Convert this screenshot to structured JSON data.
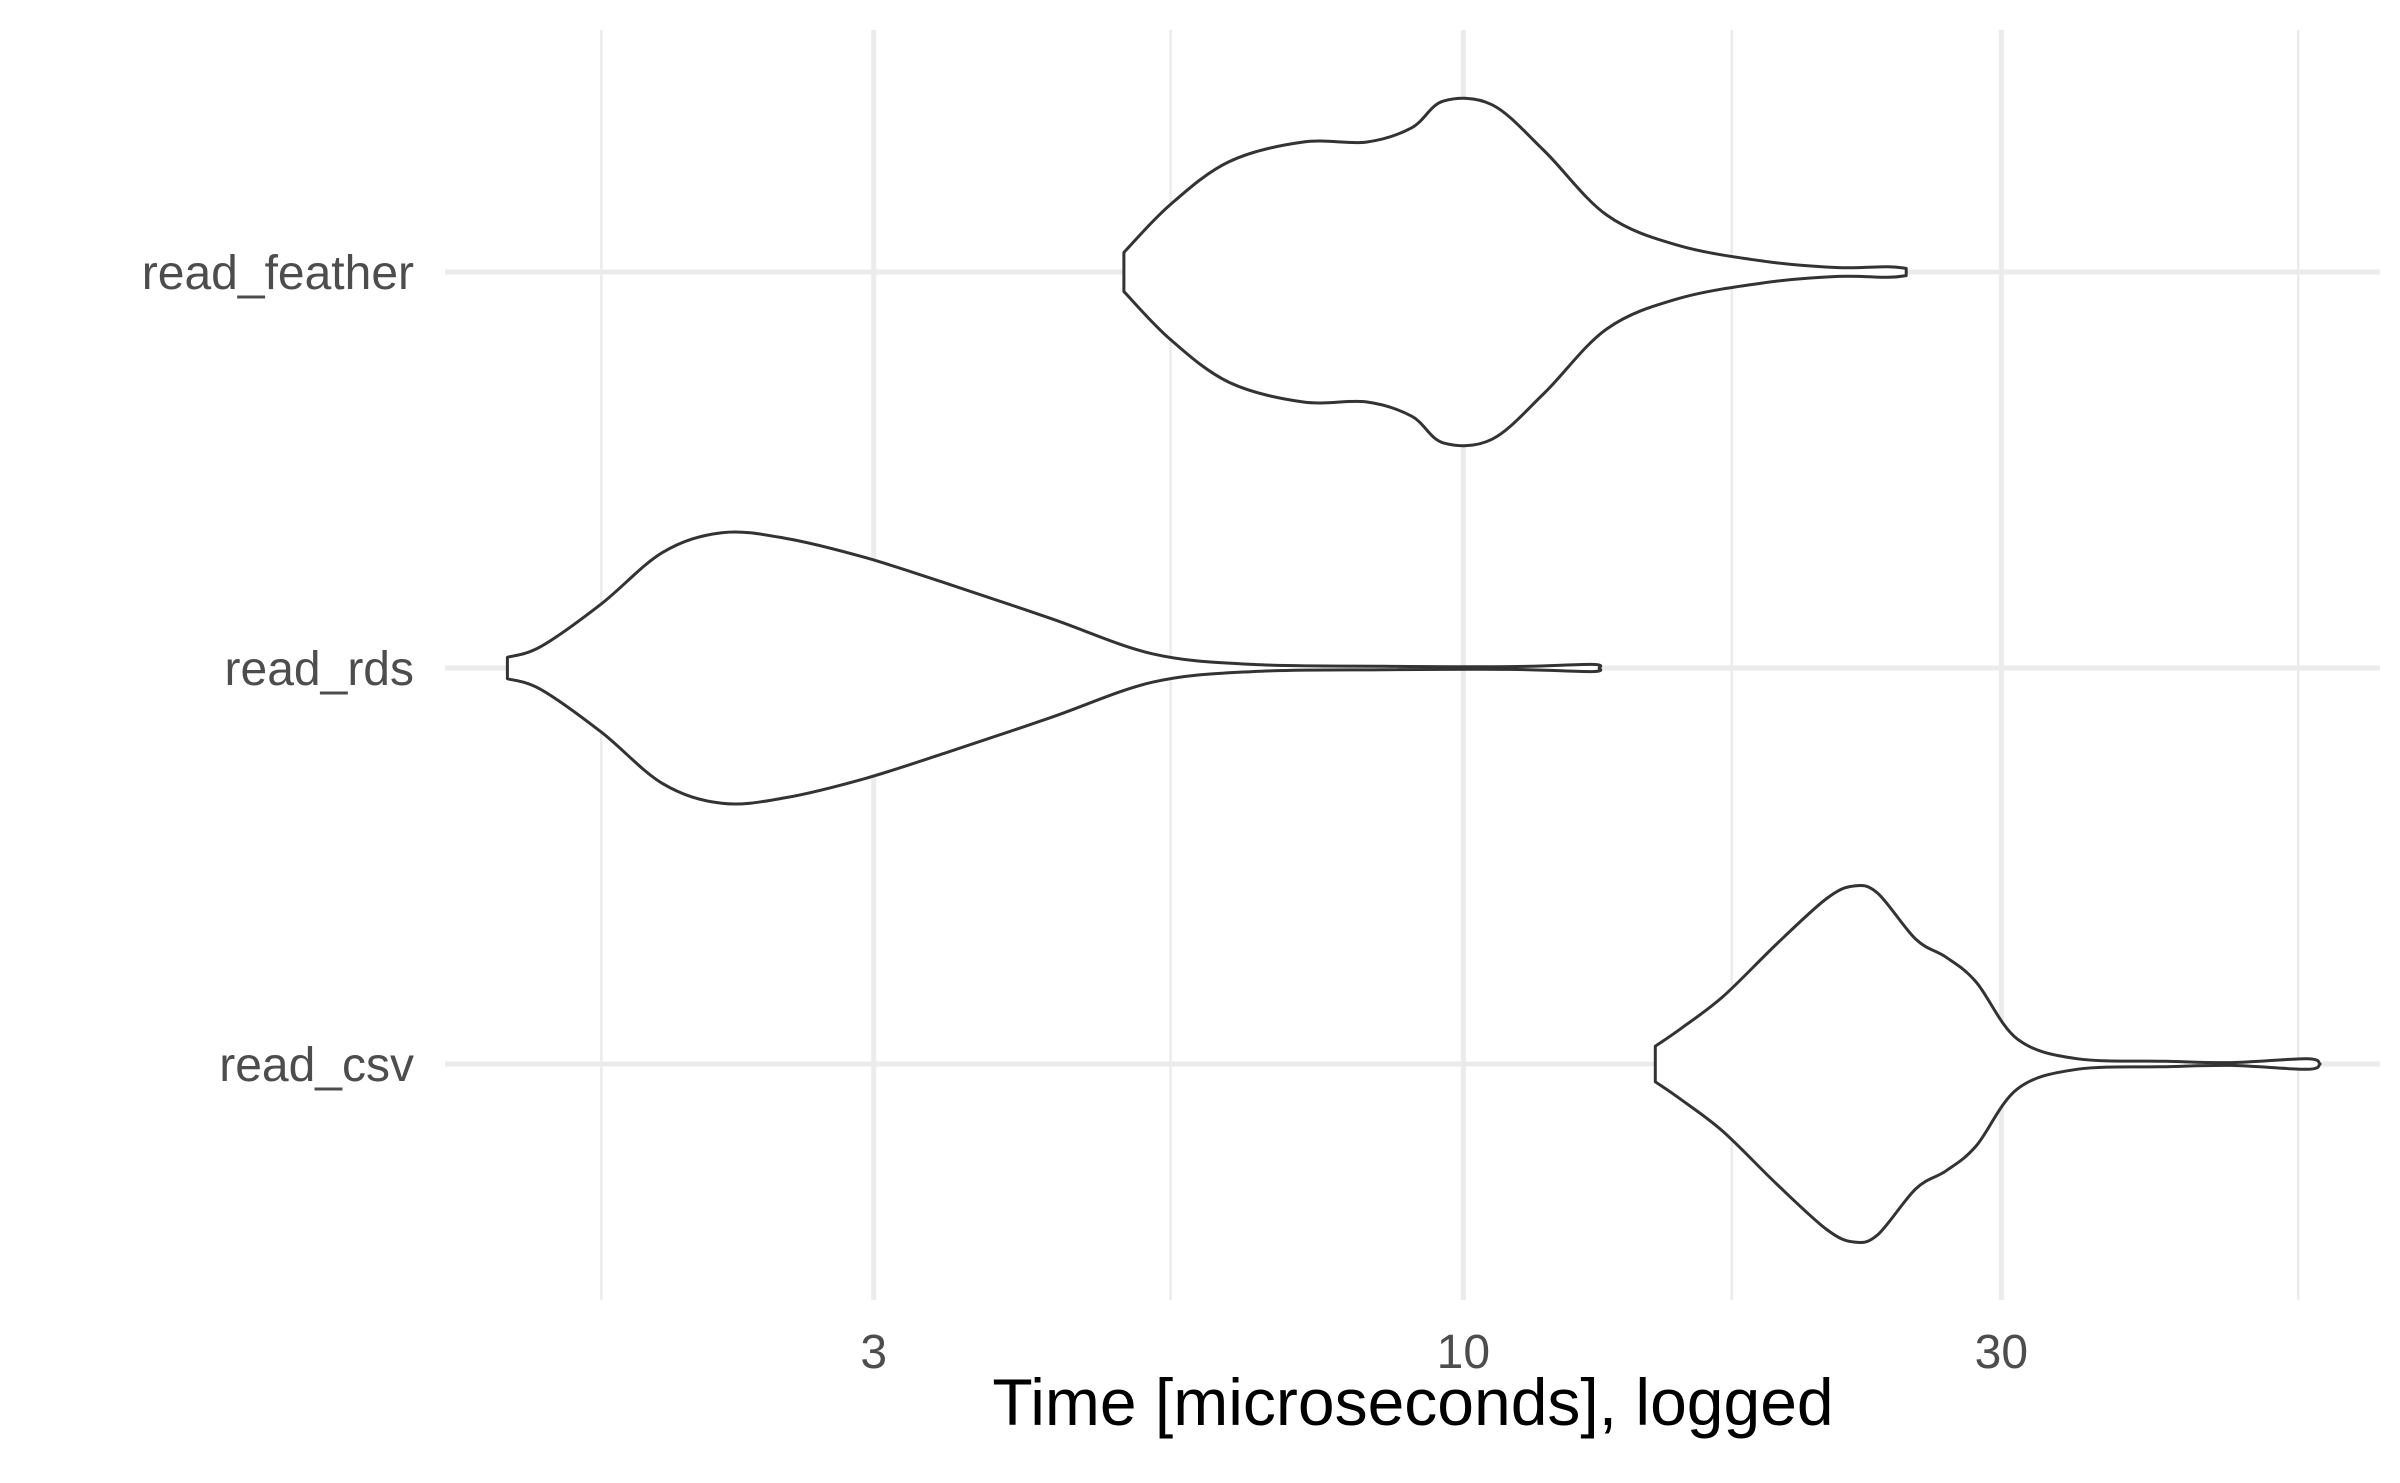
{
  "chart_data": {
    "type": "violin",
    "orientation": "horizontal",
    "title": "",
    "xlabel": "Time [microseconds], logged",
    "ylabel": "",
    "x_scale": "log10",
    "xlim": [
      1.25,
      65
    ],
    "x_ticks": [
      {
        "value": 3,
        "label": "3"
      },
      {
        "value": 10,
        "label": "10"
      },
      {
        "value": 30,
        "label": "30"
      }
    ],
    "x_minor_ticks": [
      1.72,
      5.5,
      17.3,
      55.0
    ],
    "categories": [
      "read_feather",
      "read_rds",
      "read_csv"
    ],
    "grid": true,
    "series": [
      {
        "name": "read_feather",
        "profile": [
          [
            5.0,
            0.11
          ],
          [
            5.5,
            0.38
          ],
          [
            6.2,
            0.62
          ],
          [
            7.2,
            0.73
          ],
          [
            8.2,
            0.73
          ],
          [
            9.0,
            0.81
          ],
          [
            9.6,
            0.96
          ],
          [
            10.6,
            0.94
          ],
          [
            11.8,
            0.68
          ],
          [
            13.4,
            0.32
          ],
          [
            15.5,
            0.15
          ],
          [
            18.5,
            0.06
          ],
          [
            21.5,
            0.025
          ],
          [
            23.8,
            0.03
          ],
          [
            24.7,
            0.02
          ]
        ]
      },
      {
        "name": "read_rds",
        "profile": [
          [
            1.42,
            0.06
          ],
          [
            1.52,
            0.12
          ],
          [
            1.72,
            0.36
          ],
          [
            1.95,
            0.65
          ],
          [
            2.2,
            0.76
          ],
          [
            2.5,
            0.73
          ],
          [
            2.95,
            0.62
          ],
          [
            3.5,
            0.47
          ],
          [
            4.3,
            0.28
          ],
          [
            5.3,
            0.08
          ],
          [
            6.5,
            0.02
          ],
          [
            8.5,
            0.01
          ],
          [
            11.0,
            0.008
          ],
          [
            13.0,
            0.02
          ],
          [
            13.2,
            0.0
          ]
        ]
      },
      {
        "name": "read_csv",
        "profile": [
          [
            14.8,
            0.1
          ],
          [
            15.6,
            0.2
          ],
          [
            17.0,
            0.38
          ],
          [
            19.0,
            0.68
          ],
          [
            21.0,
            0.93
          ],
          [
            22.2,
            1.0
          ],
          [
            23.3,
            0.96
          ],
          [
            25.2,
            0.7
          ],
          [
            26.8,
            0.6
          ],
          [
            28.5,
            0.46
          ],
          [
            31.0,
            0.14
          ],
          [
            35.0,
            0.03
          ],
          [
            42.0,
            0.015
          ],
          [
            48.0,
            0.008
          ],
          [
            56.0,
            0.03
          ],
          [
            57.5,
            0.0
          ]
        ]
      }
    ]
  }
}
